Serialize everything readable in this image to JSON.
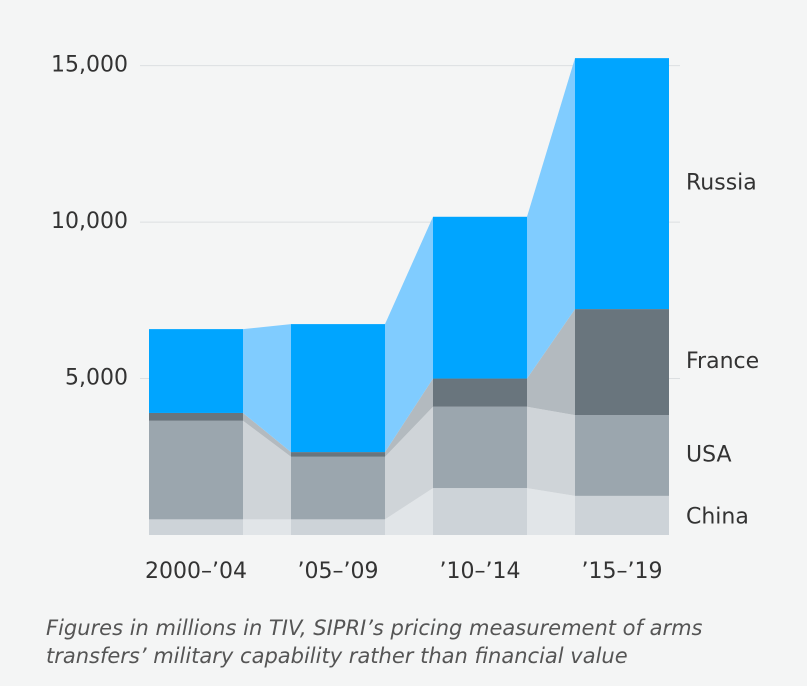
{
  "chart_data": {
    "type": "stacked-bar",
    "categories": [
      "2000–’04",
      "’05–’09",
      "’10–’14",
      "’15–’19"
    ],
    "series": [
      {
        "name": "China",
        "color": "#cdd3d8",
        "connector_color": "#e1e5e8",
        "values": [
          500,
          500,
          1500,
          1250
        ]
      },
      {
        "name": "USA",
        "color": "#9ba6ae",
        "connector_color": "#cfd4d8",
        "values": [
          3150,
          2000,
          2600,
          2580
        ]
      },
      {
        "name": "France",
        "color": "#69757d",
        "connector_color": "#b3babf",
        "values": [
          250,
          150,
          900,
          3390
        ]
      },
      {
        "name": "Russia",
        "color": "#00a5ff",
        "connector_color": "#80ccff",
        "values": [
          2680,
          4090,
          5170,
          8020
        ]
      }
    ],
    "ylim": [
      0,
      15500
    ],
    "yticks": [
      {
        "value": 5000,
        "label": "5,000"
      },
      {
        "value": 10000,
        "label": "10,000"
      },
      {
        "value": 15000,
        "label": "15,000"
      }
    ],
    "grid": true,
    "caption": "Figures in millions in TIV, SIPRI’s pricing measurement of arms transfers’ military capability rather than financial value"
  }
}
